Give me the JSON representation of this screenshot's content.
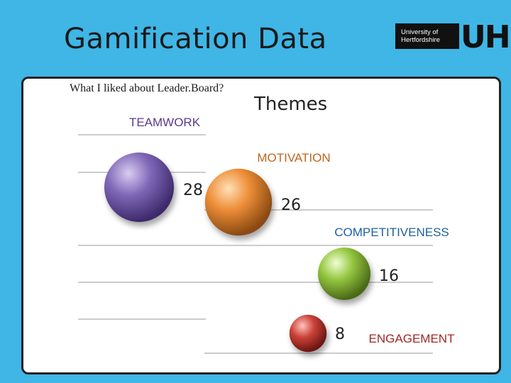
{
  "slide": {
    "title": "Gamification Data",
    "logo_text_line1": "University of",
    "logo_text_line2": "Hertfordshire",
    "logo_mark": "UH"
  },
  "chart_data": {
    "type": "bubble",
    "subtitle": "What I liked about Leader.Board?",
    "title": "Themes",
    "categories": [
      "TEAMWORK",
      "MOTIVATION",
      "COMPETITIVENESS",
      "ENGAGEMENT"
    ],
    "values": [
      28,
      26,
      16,
      8
    ],
    "label_colors": [
      "#5b3a8e",
      "#c0671c",
      "#1f5fa0",
      "#a32626"
    ],
    "bubble_colors": [
      "#7e64b4",
      "#e08a36",
      "#8fc23c",
      "#c4403a"
    ],
    "grid": true
  }
}
